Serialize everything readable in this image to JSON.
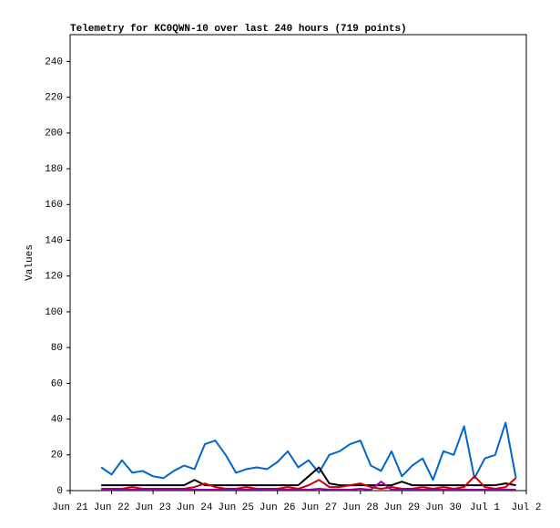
{
  "chart_data": {
    "type": "line",
    "title": "Telemetry for KC0QWN-10 over last 240 hours (719 points)",
    "y_label": "Values",
    "xlim": [
      0,
      11
    ],
    "xticks": [
      {
        "value": 0,
        "label": "Jun 21"
      },
      {
        "value": 1,
        "label": "Jun 22"
      },
      {
        "value": 2,
        "label": "Jun 23"
      },
      {
        "value": 3,
        "label": "Jun 24"
      },
      {
        "value": 4,
        "label": "Jun 25"
      },
      {
        "value": 5,
        "label": "Jun 26"
      },
      {
        "value": 6,
        "label": "Jun 27"
      },
      {
        "value": 7,
        "label": "Jun 28"
      },
      {
        "value": 8,
        "label": "Jun 29"
      },
      {
        "value": 9,
        "label": "Jun 30"
      },
      {
        "value": 10,
        "label": "Jul 1"
      },
      {
        "value": 11,
        "label": "Jul 2"
      }
    ],
    "ylim": [
      0,
      255
    ],
    "yticks": [
      0,
      20,
      40,
      60,
      80,
      100,
      120,
      140,
      160,
      180,
      200,
      220,
      240
    ],
    "grid": false,
    "x": [
      0.75,
      1.0,
      1.25,
      1.5,
      1.75,
      2.0,
      2.25,
      2.5,
      2.75,
      3.0,
      3.25,
      3.5,
      3.75,
      4.0,
      4.25,
      4.5,
      4.75,
      5.0,
      5.25,
      5.5,
      5.75,
      6.0,
      6.25,
      6.5,
      6.75,
      7.0,
      7.25,
      7.5,
      7.75,
      8.0,
      8.25,
      8.5,
      8.75,
      9.0,
      9.25,
      9.5,
      9.75,
      10.0,
      10.25,
      10.5,
      10.75
    ],
    "series": [
      {
        "color": "#0066cc",
        "values": [
          13,
          9,
          17,
          10,
          11,
          8,
          7,
          11,
          14,
          12,
          26,
          28,
          20,
          10,
          12,
          13,
          12,
          16,
          22,
          13,
          17,
          10,
          20,
          22,
          26,
          28,
          14,
          11,
          22,
          8,
          14,
          18,
          6,
          22,
          20,
          36,
          7,
          18,
          20,
          38,
          7
        ]
      },
      {
        "color": "#000000",
        "values": [
          3,
          3,
          3,
          3,
          3,
          3,
          3,
          3,
          3,
          6,
          3,
          3,
          3,
          3,
          3,
          3,
          3,
          3,
          3,
          3,
          8,
          13,
          4,
          3,
          3,
          3,
          3,
          3,
          3,
          5,
          3,
          3,
          3,
          3,
          3,
          3,
          3,
          3,
          3,
          4,
          3
        ]
      },
      {
        "color": "#cc0000",
        "values": [
          1,
          1,
          1,
          2,
          1,
          1,
          1,
          1,
          1,
          2,
          4,
          2,
          1,
          1,
          2,
          1,
          1,
          1,
          2,
          1,
          3,
          6,
          2,
          2,
          3,
          4,
          2,
          1,
          2,
          1,
          1,
          2,
          1,
          2,
          1,
          2,
          8,
          2,
          1,
          2,
          7
        ]
      },
      {
        "color": "#990099",
        "values": [
          0.5,
          0.5,
          0.5,
          0.5,
          0.5,
          0.5,
          0.5,
          0.5,
          0.5,
          0.5,
          0.5,
          0.5,
          0.5,
          0.5,
          0.5,
          0.5,
          0.5,
          0.5,
          0.5,
          0.5,
          0.5,
          1,
          0.5,
          0.5,
          0.5,
          1,
          0.5,
          5,
          0.5,
          0.5,
          0.5,
          0.5,
          0.5,
          0.5,
          0.5,
          0.5,
          0.5,
          0.5,
          0.5,
          0.5,
          0.5
        ]
      }
    ]
  }
}
